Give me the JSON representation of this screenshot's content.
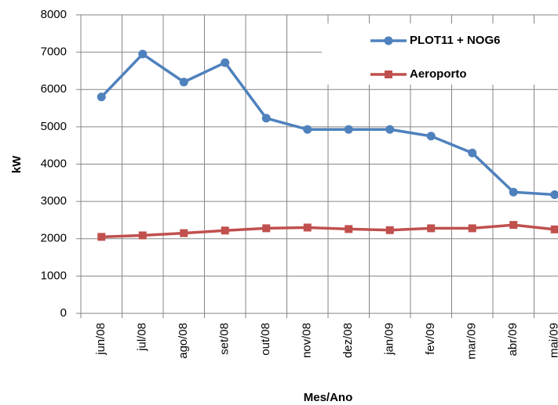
{
  "chart_data": {
    "type": "line",
    "y_label": "kW",
    "x_label": "Mes/Ano",
    "categories": [
      "jun/08",
      "jul/08",
      "ago/08",
      "set/08",
      "out/08",
      "nov/08",
      "dez/08",
      "jan/09",
      "fev/09",
      "mar/09",
      "abr/09",
      "mai/09"
    ],
    "series": [
      {
        "name": "PLOT11 + NOG6",
        "color": "#4f81bd",
        "marker": "circle",
        "values": [
          5800,
          6950,
          6200,
          6720,
          5230,
          4930,
          4930,
          4930,
          4750,
          4300,
          3250,
          3180
        ]
      },
      {
        "name": "Aeroporto",
        "color": "#c0504d",
        "marker": "square",
        "values": [
          2050,
          2090,
          2150,
          2220,
          2280,
          2300,
          2260,
          2230,
          2280,
          2280,
          2370,
          2250
        ]
      }
    ],
    "ylim": [
      0,
      8000
    ],
    "yticks": [
      0,
      1000,
      2000,
      3000,
      4000,
      5000,
      6000,
      7000,
      8000
    ],
    "grid": true
  }
}
